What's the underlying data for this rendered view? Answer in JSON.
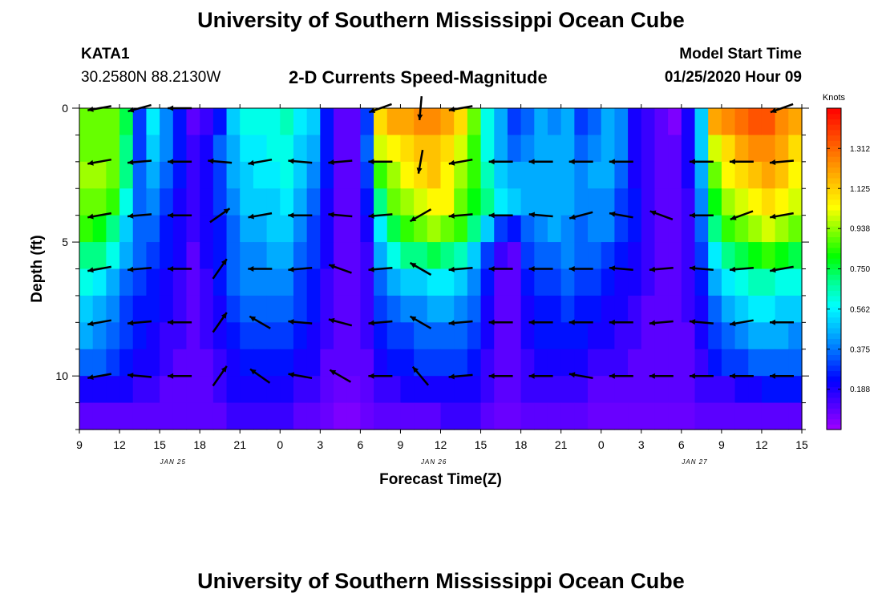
{
  "header": {
    "title": "University of Southern Mississippi Ocean Cube",
    "station_id": "KATA1",
    "station_coords": "30.2580N 88.2130W",
    "model_start_label": "Model Start Time",
    "model_start_value": "01/25/2020 Hour 09"
  },
  "footer": {
    "title": "University of Southern Mississippi Ocean Cube"
  },
  "chart_data": {
    "type": "heatmap",
    "title": "2-D Currents Speed-Magnitude",
    "xlabel": "Forecast Time(Z)",
    "ylabel": "Depth (ft)",
    "x_tick_labels": [
      "9",
      "12",
      "15",
      "18",
      "21",
      "0",
      "3",
      "6",
      "9",
      "12",
      "15",
      "18",
      "21",
      "0",
      "3",
      "6",
      "9",
      "12",
      "15"
    ],
    "x_range_hours": [
      0,
      54
    ],
    "date_labels": [
      {
        "text": "JAN 25",
        "hour": 7
      },
      {
        "text": "JAN 26",
        "hour": 26.5
      },
      {
        "text": "JAN 27",
        "hour": 46
      }
    ],
    "y_tick_labels": [
      "0",
      "5",
      "10"
    ],
    "y_ticks": [
      0,
      5,
      10
    ],
    "ylim": [
      0,
      12
    ],
    "y_inverted": true,
    "colorbar": {
      "units": "Knots",
      "tick_labels": [
        "0.188",
        "0.375",
        "0.562",
        "0.750",
        "0.938",
        "1.125",
        "1.312"
      ],
      "ticks": [
        0.188,
        0.375,
        0.562,
        0.75,
        0.938,
        1.125,
        1.312
      ],
      "range": [
        0,
        1.5
      ],
      "colors": [
        "#a000ff",
        "#5000ff",
        "#0000ff",
        "#0060ff",
        "#00b4ff",
        "#00ffff",
        "#00ff90",
        "#00ff00",
        "#80ff00",
        "#ffff00",
        "#ffc000",
        "#ff8000",
        "#ff4000",
        "#ff0000"
      ]
    },
    "time_hours": [
      0,
      1,
      2,
      3,
      4,
      5,
      6,
      7,
      8,
      9,
      10,
      11,
      12,
      13,
      14,
      15,
      16,
      17,
      18,
      19,
      20,
      21,
      22,
      23,
      24,
      25,
      26,
      27,
      28,
      29,
      30,
      31,
      32,
      33,
      34,
      35,
      36,
      37,
      38,
      39,
      40,
      41,
      42,
      43,
      44,
      45,
      46,
      47,
      48,
      49,
      50,
      51,
      52,
      53
    ],
    "depths_ft": [
      0.5,
      1.5,
      2.5,
      3.5,
      4.5,
      5.5,
      6.5,
      7.5,
      8.5,
      9.5,
      10.5,
      11.5
    ],
    "speed_knots": [
      [
        0.9,
        0.9,
        0.9,
        0.75,
        0.3,
        0.55,
        0.4,
        0.25,
        0.1,
        0.15,
        0.25,
        0.5,
        0.6,
        0.6,
        0.6,
        0.65,
        0.55,
        0.5,
        0.25,
        0.1,
        0.1,
        0.3,
        1.1,
        1.2,
        1.2,
        1.25,
        1.25,
        1.2,
        1.1,
        0.9,
        0.6,
        0.45,
        0.3,
        0.35,
        0.45,
        0.4,
        0.45,
        0.3,
        0.35,
        0.45,
        0.4,
        0.2,
        0.15,
        0.1,
        0.05,
        0.2,
        0.5,
        1.2,
        1.25,
        1.3,
        1.35,
        1.35,
        1.25,
        1.2
      ],
      [
        0.9,
        0.9,
        0.9,
        0.7,
        0.3,
        0.5,
        0.4,
        0.25,
        0.15,
        0.2,
        0.35,
        0.45,
        0.55,
        0.55,
        0.6,
        0.6,
        0.5,
        0.45,
        0.25,
        0.1,
        0.1,
        0.35,
        1.0,
        1.05,
        1.1,
        1.15,
        1.15,
        1.1,
        1.0,
        0.85,
        0.6,
        0.45,
        0.35,
        0.4,
        0.45,
        0.45,
        0.45,
        0.35,
        0.4,
        0.45,
        0.4,
        0.2,
        0.15,
        0.1,
        0.1,
        0.2,
        0.5,
        1.0,
        1.1,
        1.2,
        1.25,
        1.25,
        1.2,
        1.1
      ],
      [
        0.95,
        0.95,
        0.9,
        0.7,
        0.35,
        0.45,
        0.35,
        0.25,
        0.15,
        0.2,
        0.3,
        0.45,
        0.5,
        0.55,
        0.55,
        0.6,
        0.5,
        0.4,
        0.25,
        0.1,
        0.1,
        0.3,
        0.85,
        0.95,
        1.05,
        1.1,
        1.15,
        1.05,
        0.95,
        0.85,
        0.65,
        0.5,
        0.45,
        0.45,
        0.45,
        0.45,
        0.45,
        0.4,
        0.45,
        0.45,
        0.35,
        0.2,
        0.15,
        0.1,
        0.1,
        0.2,
        0.45,
        0.9,
        1.05,
        1.1,
        1.15,
        1.2,
        1.15,
        1.05
      ],
      [
        0.9,
        0.9,
        0.85,
        0.6,
        0.35,
        0.4,
        0.3,
        0.2,
        0.15,
        0.2,
        0.3,
        0.4,
        0.5,
        0.5,
        0.5,
        0.55,
        0.45,
        0.35,
        0.2,
        0.1,
        0.1,
        0.25,
        0.7,
        0.9,
        0.95,
        1.0,
        1.05,
        1.05,
        0.9,
        0.8,
        0.7,
        0.55,
        0.5,
        0.45,
        0.45,
        0.45,
        0.45,
        0.4,
        0.4,
        0.4,
        0.3,
        0.25,
        0.15,
        0.1,
        0.1,
        0.15,
        0.4,
        0.8,
        0.95,
        1.0,
        1.05,
        1.1,
        1.05,
        1.0
      ],
      [
        0.85,
        0.8,
        0.7,
        0.5,
        0.35,
        0.35,
        0.25,
        0.2,
        0.15,
        0.2,
        0.25,
        0.35,
        0.45,
        0.45,
        0.5,
        0.5,
        0.4,
        0.3,
        0.2,
        0.1,
        0.1,
        0.2,
        0.55,
        0.75,
        0.85,
        0.9,
        0.95,
        0.9,
        0.85,
        0.7,
        0.5,
        0.3,
        0.25,
        0.35,
        0.4,
        0.45,
        0.4,
        0.35,
        0.4,
        0.4,
        0.3,
        0.25,
        0.15,
        0.1,
        0.1,
        0.15,
        0.35,
        0.7,
        0.85,
        0.9,
        0.95,
        1.0,
        0.95,
        0.9
      ],
      [
        0.7,
        0.7,
        0.6,
        0.45,
        0.35,
        0.3,
        0.25,
        0.2,
        0.1,
        0.2,
        0.25,
        0.35,
        0.4,
        0.4,
        0.45,
        0.45,
        0.35,
        0.3,
        0.2,
        0.1,
        0.1,
        0.15,
        0.45,
        0.6,
        0.7,
        0.7,
        0.75,
        0.7,
        0.65,
        0.5,
        0.3,
        0.15,
        0.1,
        0.3,
        0.35,
        0.35,
        0.4,
        0.35,
        0.35,
        0.3,
        0.25,
        0.2,
        0.15,
        0.1,
        0.1,
        0.15,
        0.3,
        0.55,
        0.7,
        0.75,
        0.8,
        0.85,
        0.8,
        0.75
      ],
      [
        0.6,
        0.55,
        0.45,
        0.35,
        0.3,
        0.25,
        0.2,
        0.15,
        0.1,
        0.15,
        0.25,
        0.35,
        0.4,
        0.4,
        0.4,
        0.4,
        0.3,
        0.25,
        0.15,
        0.1,
        0.1,
        0.15,
        0.35,
        0.45,
        0.5,
        0.5,
        0.55,
        0.55,
        0.5,
        0.4,
        0.25,
        0.1,
        0.1,
        0.25,
        0.3,
        0.3,
        0.35,
        0.3,
        0.3,
        0.25,
        0.2,
        0.2,
        0.15,
        0.1,
        0.1,
        0.15,
        0.25,
        0.45,
        0.55,
        0.6,
        0.65,
        0.65,
        0.6,
        0.6
      ],
      [
        0.5,
        0.45,
        0.4,
        0.3,
        0.25,
        0.25,
        0.2,
        0.15,
        0.1,
        0.15,
        0.2,
        0.3,
        0.35,
        0.35,
        0.35,
        0.35,
        0.3,
        0.25,
        0.15,
        0.1,
        0.1,
        0.15,
        0.3,
        0.35,
        0.4,
        0.4,
        0.45,
        0.45,
        0.4,
        0.35,
        0.2,
        0.1,
        0.1,
        0.2,
        0.25,
        0.25,
        0.3,
        0.25,
        0.25,
        0.2,
        0.2,
        0.15,
        0.1,
        0.1,
        0.1,
        0.15,
        0.2,
        0.35,
        0.45,
        0.5,
        0.55,
        0.55,
        0.5,
        0.5
      ],
      [
        0.45,
        0.4,
        0.35,
        0.3,
        0.25,
        0.2,
        0.15,
        0.15,
        0.1,
        0.15,
        0.2,
        0.25,
        0.3,
        0.3,
        0.3,
        0.3,
        0.25,
        0.2,
        0.15,
        0.1,
        0.1,
        0.15,
        0.25,
        0.3,
        0.3,
        0.35,
        0.35,
        0.35,
        0.35,
        0.3,
        0.2,
        0.1,
        0.1,
        0.2,
        0.25,
        0.25,
        0.25,
        0.25,
        0.2,
        0.2,
        0.15,
        0.15,
        0.1,
        0.1,
        0.1,
        0.1,
        0.2,
        0.3,
        0.35,
        0.4,
        0.45,
        0.45,
        0.45,
        0.4
      ],
      [
        0.35,
        0.35,
        0.3,
        0.25,
        0.2,
        0.2,
        0.15,
        0.1,
        0.1,
        0.1,
        0.15,
        0.2,
        0.25,
        0.25,
        0.25,
        0.25,
        0.2,
        0.2,
        0.1,
        0.1,
        0.1,
        0.1,
        0.2,
        0.25,
        0.25,
        0.3,
        0.3,
        0.3,
        0.3,
        0.25,
        0.15,
        0.1,
        0.1,
        0.15,
        0.2,
        0.2,
        0.2,
        0.2,
        0.15,
        0.15,
        0.15,
        0.1,
        0.1,
        0.1,
        0.1,
        0.1,
        0.15,
        0.25,
        0.3,
        0.3,
        0.35,
        0.35,
        0.35,
        0.35
      ],
      [
        0.2,
        0.2,
        0.2,
        0.2,
        0.15,
        0.15,
        0.1,
        0.1,
        0.1,
        0.1,
        0.15,
        0.2,
        0.2,
        0.2,
        0.2,
        0.2,
        0.15,
        0.15,
        0.1,
        0.08,
        0.08,
        0.1,
        0.15,
        0.15,
        0.2,
        0.2,
        0.2,
        0.2,
        0.2,
        0.2,
        0.15,
        0.1,
        0.1,
        0.15,
        0.15,
        0.15,
        0.15,
        0.15,
        0.1,
        0.1,
        0.1,
        0.1,
        0.1,
        0.1,
        0.1,
        0.1,
        0.15,
        0.15,
        0.15,
        0.2,
        0.2,
        0.25,
        0.25,
        0.25
      ],
      [
        0.1,
        0.1,
        0.1,
        0.1,
        0.1,
        0.1,
        0.1,
        0.1,
        0.1,
        0.1,
        0.1,
        0.15,
        0.15,
        0.15,
        0.15,
        0.15,
        0.1,
        0.1,
        0.08,
        0.05,
        0.05,
        0.08,
        0.1,
        0.1,
        0.1,
        0.1,
        0.1,
        0.15,
        0.15,
        0.15,
        0.1,
        0.08,
        0.08,
        0.1,
        0.1,
        0.1,
        0.1,
        0.1,
        0.08,
        0.08,
        0.08,
        0.08,
        0.08,
        0.08,
        0.08,
        0.08,
        0.1,
        0.1,
        0.1,
        0.1,
        0.1,
        0.1,
        0.1,
        0.1
      ]
    ],
    "vector_times": [
      1.5,
      4.5,
      7.5,
      10.5,
      13.5,
      16.5,
      19.5,
      22.5,
      25.5,
      28.5,
      31.5,
      34.5,
      37.5,
      40.5,
      43.5,
      46.5,
      49.5,
      52.5
    ],
    "vector_depths": [
      0,
      2,
      4,
      6,
      8,
      10,
      12
    ],
    "vector_dirs_deg": [
      [
        190,
        195,
        180,
        null,
        null,
        null,
        null,
        200,
        265,
        190,
        null,
        null,
        null,
        null,
        null,
        null,
        null,
        200
      ],
      [
        190,
        185,
        180,
        175,
        190,
        175,
        185,
        180,
        260,
        190,
        180,
        180,
        180,
        180,
        null,
        180,
        180,
        185
      ],
      [
        190,
        185,
        180,
        35,
        190,
        180,
        175,
        185,
        210,
        185,
        180,
        175,
        195,
        170,
        160,
        180,
        200,
        190
      ],
      [
        190,
        185,
        180,
        55,
        180,
        185,
        160,
        185,
        150,
        185,
        180,
        180,
        180,
        175,
        185,
        175,
        185,
        190
      ],
      [
        190,
        185,
        180,
        55,
        150,
        175,
        165,
        185,
        150,
        185,
        180,
        180,
        180,
        180,
        185,
        175,
        190,
        180
      ],
      [
        190,
        175,
        180,
        55,
        145,
        170,
        150,
        180,
        130,
        185,
        180,
        180,
        170,
        180,
        180,
        180,
        180,
        180
      ],
      [
        null,
        null,
        null,
        null,
        null,
        null,
        null,
        null,
        null,
        null,
        null,
        null,
        null,
        null,
        null,
        null,
        null,
        null
      ]
    ]
  }
}
